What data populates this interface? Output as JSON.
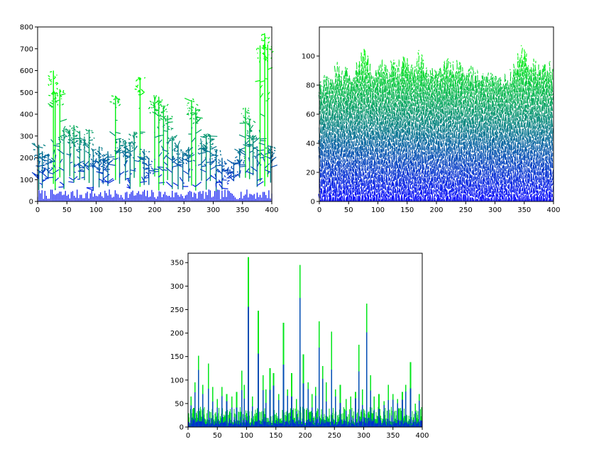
{
  "chart_data": [
    {
      "id": "dla-sparse",
      "type": "scatter",
      "title": "",
      "xlabel": "",
      "ylabel": "",
      "xlim": [
        0,
        400
      ],
      "ylim": [
        0,
        800
      ],
      "xticks": [
        0,
        50,
        100,
        150,
        200,
        250,
        300,
        350,
        400
      ],
      "yticks": [
        0,
        100,
        200,
        300,
        400,
        500,
        600,
        700,
        800
      ],
      "grid": false,
      "colormap": [
        "#0000ff",
        "#00ff00"
      ],
      "peaks": [
        {
          "x": 2,
          "y": 260
        },
        {
          "x": 8,
          "y": 230
        },
        {
          "x": 18,
          "y": 215
        },
        {
          "x": 27,
          "y": 600
        },
        {
          "x": 30,
          "y": 500
        },
        {
          "x": 38,
          "y": 515
        },
        {
          "x": 45,
          "y": 335
        },
        {
          "x": 55,
          "y": 330
        },
        {
          "x": 62,
          "y": 350
        },
        {
          "x": 72,
          "y": 320
        },
        {
          "x": 80,
          "y": 290
        },
        {
          "x": 88,
          "y": 330
        },
        {
          "x": 95,
          "y": 240
        },
        {
          "x": 105,
          "y": 250
        },
        {
          "x": 112,
          "y": 200
        },
        {
          "x": 120,
          "y": 230
        },
        {
          "x": 133,
          "y": 485
        },
        {
          "x": 140,
          "y": 290
        },
        {
          "x": 150,
          "y": 280
        },
        {
          "x": 158,
          "y": 270
        },
        {
          "x": 165,
          "y": 320
        },
        {
          "x": 175,
          "y": 565
        },
        {
          "x": 182,
          "y": 240
        },
        {
          "x": 190,
          "y": 200
        },
        {
          "x": 200,
          "y": 470
        },
        {
          "x": 207,
          "y": 480
        },
        {
          "x": 215,
          "y": 440
        },
        {
          "x": 222,
          "y": 395
        },
        {
          "x": 230,
          "y": 300
        },
        {
          "x": 240,
          "y": 260
        },
        {
          "x": 248,
          "y": 230
        },
        {
          "x": 258,
          "y": 250
        },
        {
          "x": 263,
          "y": 465
        },
        {
          "x": 270,
          "y": 430
        },
        {
          "x": 280,
          "y": 270
        },
        {
          "x": 288,
          "y": 310
        },
        {
          "x": 295,
          "y": 305
        },
        {
          "x": 305,
          "y": 240
        },
        {
          "x": 315,
          "y": 200
        },
        {
          "x": 325,
          "y": 150
        },
        {
          "x": 335,
          "y": 180
        },
        {
          "x": 345,
          "y": 240
        },
        {
          "x": 355,
          "y": 430
        },
        {
          "x": 362,
          "y": 380
        },
        {
          "x": 368,
          "y": 300
        },
        {
          "x": 375,
          "y": 240
        },
        {
          "x": 380,
          "y": 715
        },
        {
          "x": 388,
          "y": 765
        },
        {
          "x": 393,
          "y": 720
        },
        {
          "x": 398,
          "y": 255
        }
      ]
    },
    {
      "id": "dla-dense",
      "type": "scatter",
      "title": "",
      "xlabel": "",
      "ylabel": "",
      "xlim": [
        0,
        400
      ],
      "ylim": [
        0,
        120
      ],
      "xticks": [
        0,
        50,
        100,
        150,
        200,
        250,
        300,
        350,
        400
      ],
      "yticks": [
        0,
        20,
        40,
        60,
        80,
        100
      ],
      "grid": false,
      "colormap": [
        "#0000ff",
        "#00ff00"
      ],
      "top_profile": [
        {
          "x": 0,
          "y": 86
        },
        {
          "x": 10,
          "y": 92
        },
        {
          "x": 20,
          "y": 88
        },
        {
          "x": 30,
          "y": 98
        },
        {
          "x": 40,
          "y": 90
        },
        {
          "x": 50,
          "y": 96
        },
        {
          "x": 60,
          "y": 93
        },
        {
          "x": 70,
          "y": 104
        },
        {
          "x": 78,
          "y": 109
        },
        {
          "x": 85,
          "y": 100
        },
        {
          "x": 95,
          "y": 92
        },
        {
          "x": 105,
          "y": 99
        },
        {
          "x": 115,
          "y": 95
        },
        {
          "x": 125,
          "y": 101
        },
        {
          "x": 135,
          "y": 97
        },
        {
          "x": 145,
          "y": 102
        },
        {
          "x": 155,
          "y": 96
        },
        {
          "x": 165,
          "y": 99
        },
        {
          "x": 170,
          "y": 106
        },
        {
          "x": 180,
          "y": 98
        },
        {
          "x": 190,
          "y": 93
        },
        {
          "x": 200,
          "y": 98
        },
        {
          "x": 210,
          "y": 95
        },
        {
          "x": 220,
          "y": 101
        },
        {
          "x": 230,
          "y": 96
        },
        {
          "x": 240,
          "y": 99
        },
        {
          "x": 250,
          "y": 93
        },
        {
          "x": 260,
          "y": 97
        },
        {
          "x": 270,
          "y": 92
        },
        {
          "x": 280,
          "y": 95
        },
        {
          "x": 290,
          "y": 90
        },
        {
          "x": 300,
          "y": 88
        },
        {
          "x": 310,
          "y": 90
        },
        {
          "x": 320,
          "y": 87
        },
        {
          "x": 330,
          "y": 95
        },
        {
          "x": 340,
          "y": 104
        },
        {
          "x": 345,
          "y": 112
        },
        {
          "x": 352,
          "y": 103
        },
        {
          "x": 360,
          "y": 97
        },
        {
          "x": 370,
          "y": 99
        },
        {
          "x": 380,
          "y": 96
        },
        {
          "x": 390,
          "y": 100
        },
        {
          "x": 400,
          "y": 94
        }
      ]
    },
    {
      "id": "height-profile",
      "type": "bar",
      "title": "",
      "xlabel": "",
      "ylabel": "",
      "xlim": [
        0,
        400
      ],
      "ylim": [
        0,
        370
      ],
      "xticks": [
        0,
        50,
        100,
        150,
        200,
        250,
        300,
        350,
        400
      ],
      "yticks": [
        0,
        50,
        100,
        150,
        200,
        250,
        300,
        350
      ],
      "grid": false,
      "colormap": [
        "#0000ff",
        "#00ff00"
      ],
      "spikes": [
        {
          "x": 5,
          "y": 65
        },
        {
          "x": 12,
          "y": 95
        },
        {
          "x": 18,
          "y": 152
        },
        {
          "x": 25,
          "y": 90
        },
        {
          "x": 35,
          "y": 135
        },
        {
          "x": 42,
          "y": 85
        },
        {
          "x": 50,
          "y": 60
        },
        {
          "x": 58,
          "y": 85
        },
        {
          "x": 66,
          "y": 70
        },
        {
          "x": 75,
          "y": 65
        },
        {
          "x": 83,
          "y": 75
        },
        {
          "x": 92,
          "y": 120
        },
        {
          "x": 96,
          "y": 90
        },
        {
          "x": 103,
          "y": 362
        },
        {
          "x": 110,
          "y": 65
        },
        {
          "x": 120,
          "y": 248
        },
        {
          "x": 128,
          "y": 110
        },
        {
          "x": 133,
          "y": 80
        },
        {
          "x": 140,
          "y": 125
        },
        {
          "x": 146,
          "y": 115
        },
        {
          "x": 155,
          "y": 70
        },
        {
          "x": 163,
          "y": 222
        },
        {
          "x": 170,
          "y": 80
        },
        {
          "x": 177,
          "y": 115
        },
        {
          "x": 185,
          "y": 60
        },
        {
          "x": 191,
          "y": 345
        },
        {
          "x": 197,
          "y": 155
        },
        {
          "x": 205,
          "y": 95
        },
        {
          "x": 212,
          "y": 70
        },
        {
          "x": 218,
          "y": 85
        },
        {
          "x": 224,
          "y": 225
        },
        {
          "x": 230,
          "y": 130
        },
        {
          "x": 236,
          "y": 95
        },
        {
          "x": 245,
          "y": 203
        },
        {
          "x": 252,
          "y": 80
        },
        {
          "x": 260,
          "y": 90
        },
        {
          "x": 270,
          "y": 60
        },
        {
          "x": 278,
          "y": 65
        },
        {
          "x": 286,
          "y": 75
        },
        {
          "x": 292,
          "y": 175
        },
        {
          "x": 298,
          "y": 80
        },
        {
          "x": 305,
          "y": 263
        },
        {
          "x": 312,
          "y": 110
        },
        {
          "x": 318,
          "y": 65
        },
        {
          "x": 326,
          "y": 70
        },
        {
          "x": 335,
          "y": 55
        },
        {
          "x": 342,
          "y": 90
        },
        {
          "x": 350,
          "y": 70
        },
        {
          "x": 358,
          "y": 60
        },
        {
          "x": 366,
          "y": 75
        },
        {
          "x": 372,
          "y": 90
        },
        {
          "x": 380,
          "y": 138
        },
        {
          "x": 388,
          "y": 50
        },
        {
          "x": 395,
          "y": 70
        }
      ]
    }
  ]
}
